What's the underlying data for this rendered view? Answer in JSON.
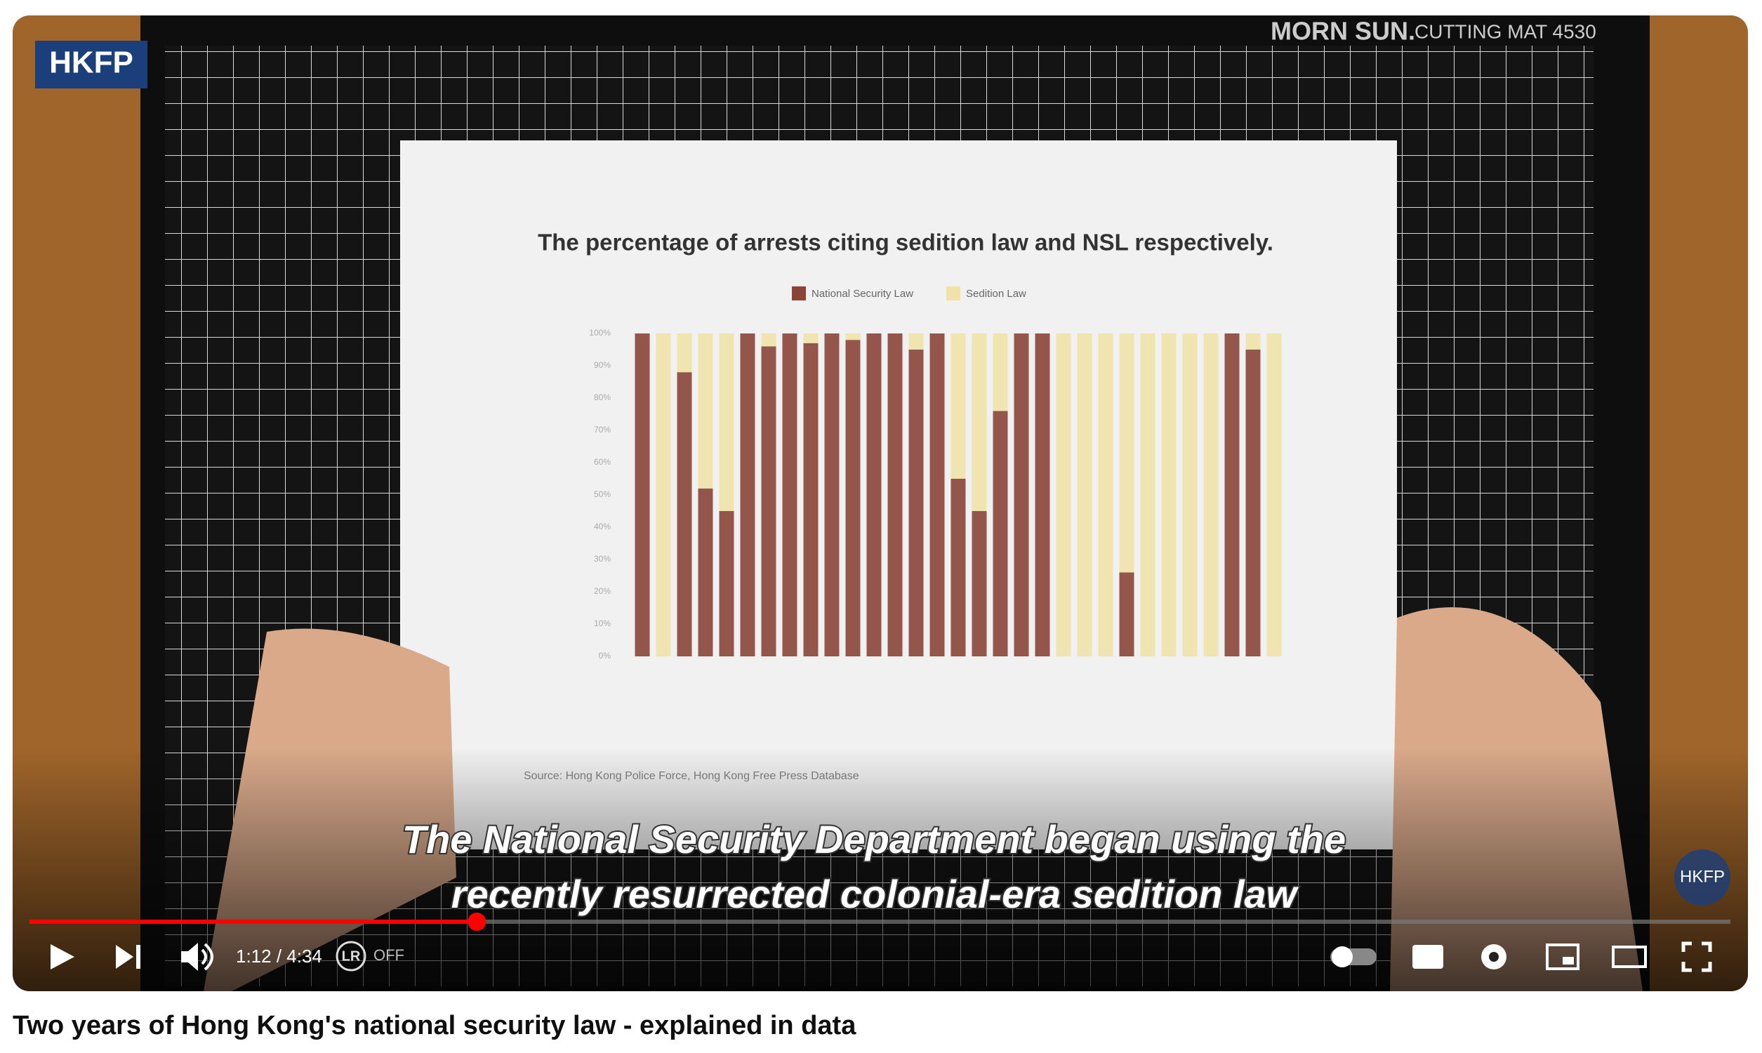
{
  "video": {
    "channel_logo": "HKFP",
    "mat_brand": "MORN SUN.",
    "mat_label": "CUTTING MAT 4530",
    "paper_chart": {
      "type": "bar",
      "title": "The percentage of arrests citing sedition law and NSL respectively.",
      "series": [
        {
          "name": "National Security Law",
          "color": "#8a4538",
          "values": [
            100,
            0,
            88,
            52,
            45,
            100,
            96,
            100,
            97,
            100,
            98,
            100,
            100,
            95,
            100,
            55,
            45,
            76,
            100,
            100,
            0,
            0,
            0,
            26,
            0,
            0,
            0,
            0,
            100,
            95,
            0
          ]
        },
        {
          "name": "Sedition Law",
          "color": "#f0e2a8",
          "values": [
            0,
            100,
            12,
            48,
            55,
            0,
            4,
            0,
            3,
            0,
            2,
            0,
            0,
            5,
            0,
            45,
            55,
            24,
            0,
            0,
            100,
            100,
            100,
            74,
            100,
            100,
            100,
            100,
            0,
            5,
            100
          ]
        }
      ],
      "ylim": [
        0,
        100
      ],
      "yticks": [
        {
          "value": 0,
          "label": "0%"
        },
        {
          "value": 10,
          "label": "10%"
        },
        {
          "value": 20,
          "label": "20%"
        },
        {
          "value": 30,
          "label": "30%"
        },
        {
          "value": 40,
          "label": "40%"
        },
        {
          "value": 50,
          "label": "50%"
        },
        {
          "value": 60,
          "label": "60%"
        },
        {
          "value": 70,
          "label": "70%"
        },
        {
          "value": 80,
          "label": "80%"
        },
        {
          "value": 90,
          "label": "90%"
        },
        {
          "value": 100,
          "label": "100%"
        }
      ],
      "source": "Source: Hong Kong Police Force, Hong Kong Free Press Database"
    },
    "captions": [
      "The National Security Department began using the",
      "recently resurrected colonial-era sedition law"
    ],
    "watermark": "HKFP"
  },
  "player": {
    "time": "1:12 / 4:34",
    "lr_state": "OFF",
    "progress_percent": 26.3
  },
  "title": "Two years of Hong Kong's national security law - explained in data"
}
